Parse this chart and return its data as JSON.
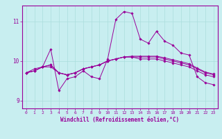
{
  "bg_color": "#c8eef0",
  "line_color": "#990099",
  "grid_color": "#aadddd",
  "xlabel": "Windchill (Refroidissement éolien,°C)",
  "xlim_min": -0.5,
  "xlim_max": 23.5,
  "ylim": [
    8.8,
    11.4
  ],
  "yticks": [
    9,
    10,
    11
  ],
  "xticks": [
    0,
    1,
    2,
    3,
    4,
    5,
    6,
    7,
    8,
    9,
    10,
    11,
    12,
    13,
    14,
    15,
    16,
    17,
    18,
    19,
    20,
    21,
    22,
    23
  ],
  "lines": [
    [
      9.7,
      9.8,
      9.85,
      10.3,
      9.25,
      9.55,
      9.6,
      9.75,
      9.6,
      9.55,
      10.05,
      11.05,
      11.25,
      11.2,
      10.55,
      10.45,
      10.75,
      10.5,
      10.4,
      10.2,
      10.15,
      9.6,
      9.45,
      9.4
    ],
    [
      9.7,
      9.75,
      9.85,
      9.85,
      9.7,
      9.65,
      9.7,
      9.8,
      9.85,
      9.9,
      10.0,
      10.05,
      10.1,
      10.1,
      10.05,
      10.05,
      10.05,
      10.0,
      9.95,
      9.9,
      9.85,
      9.75,
      9.65,
      9.6
    ],
    [
      9.7,
      9.75,
      9.85,
      9.9,
      9.7,
      9.65,
      9.7,
      9.8,
      9.85,
      9.9,
      10.0,
      10.05,
      10.1,
      10.1,
      10.1,
      10.1,
      10.1,
      10.05,
      10.0,
      9.95,
      9.9,
      9.8,
      9.7,
      9.65
    ],
    [
      9.7,
      9.75,
      9.85,
      9.9,
      9.7,
      9.65,
      9.7,
      9.8,
      9.85,
      9.9,
      10.0,
      10.05,
      10.1,
      10.12,
      10.12,
      10.12,
      10.12,
      10.08,
      10.03,
      9.98,
      9.93,
      9.82,
      9.72,
      9.67
    ]
  ]
}
